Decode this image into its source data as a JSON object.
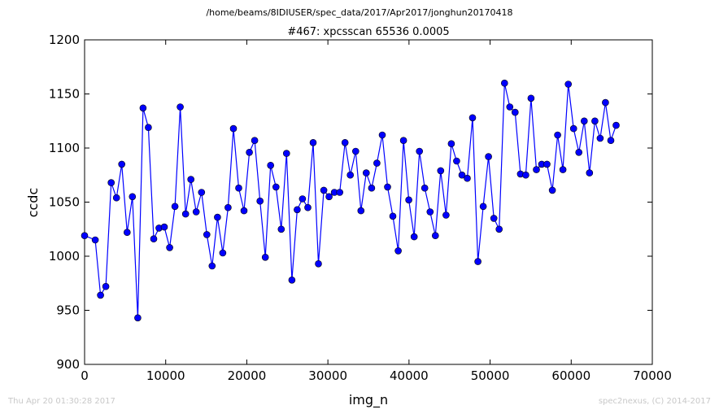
{
  "chart_data": {
    "type": "line",
    "suptitle": "/home/beams/8IDIUSER/spec_data/2017/Apr2017/jonghun20170418",
    "title": "#467: xpcsscan 65536 0.0005",
    "xlabel": "img_n",
    "ylabel": "ccdc",
    "xlim": [
      0,
      70000
    ],
    "ylim": [
      900,
      1200
    ],
    "xticks": [
      0,
      10000,
      20000,
      30000,
      40000,
      50000,
      60000,
      70000
    ],
    "yticks": [
      900,
      950,
      1000,
      1050,
      1100,
      1150,
      1200
    ],
    "grid": false,
    "marker_color": "#0000ff",
    "line_color": "#0000ff",
    "x": [
      0,
      1310,
      1966,
      2621,
      3277,
      3932,
      4588,
      5243,
      5898,
      6554,
      7209,
      7864,
      8520,
      9175,
      9830,
      10486,
      11141,
      11796,
      12452,
      13107,
      13763,
      14418,
      15073,
      15729,
      16384,
      17039,
      17695,
      18350,
      19005,
      19661,
      20316,
      20972,
      21627,
      22282,
      22938,
      23593,
      24248,
      24904,
      25559,
      26214,
      26870,
      27525,
      28180,
      28836,
      29491,
      30147,
      30802,
      31457,
      32113,
      32768,
      33423,
      34079,
      34734,
      35389,
      36045,
      36700,
      37356,
      38011,
      38666,
      39322,
      39977,
      40632,
      41288,
      41943,
      42598,
      43254,
      43909,
      44564,
      45220,
      45875,
      46531,
      47186,
      47841,
      48497,
      49152,
      49807,
      50463,
      51118,
      51773,
      52429,
      53084,
      53740,
      54395,
      55050,
      55706,
      56361,
      57016,
      57672,
      58327,
      58982,
      59638,
      60293,
      60948,
      61604,
      62259,
      62915,
      63570,
      64225,
      64881,
      65536
    ],
    "y": [
      1019,
      1015,
      964,
      972,
      1068,
      1054,
      1085,
      1022,
      1055,
      943,
      1137,
      1119,
      1016,
      1026,
      1027,
      1008,
      1046,
      1138,
      1039,
      1071,
      1041,
      1059,
      1020,
      991,
      1036,
      1003,
      1045,
      1118,
      1063,
      1042,
      1096,
      1107,
      1051,
      999,
      1084,
      1064,
      1025,
      1095,
      978,
      1043,
      1053,
      1045,
      1105,
      993,
      1061,
      1055,
      1059,
      1059,
      1105,
      1075,
      1097,
      1042,
      1077,
      1063,
      1086,
      1112,
      1064,
      1037,
      1005,
      1107,
      1052,
      1018,
      1097,
      1063,
      1041,
      1019,
      1079,
      1038,
      1104,
      1088,
      1075,
      1072,
      1128,
      995,
      1046,
      1092,
      1035,
      1025,
      1160,
      1138,
      1133,
      1076,
      1075,
      1146,
      1080,
      1085,
      1085,
      1061,
      1112,
      1080,
      1159,
      1118,
      1096,
      1125,
      1077,
      1125,
      1109,
      1142,
      1107,
      1121
    ]
  },
  "footer": {
    "timestamp": "Thu Apr 20 01:30:28 2017",
    "credit": "spec2nexus, (C) 2014-2017"
  }
}
